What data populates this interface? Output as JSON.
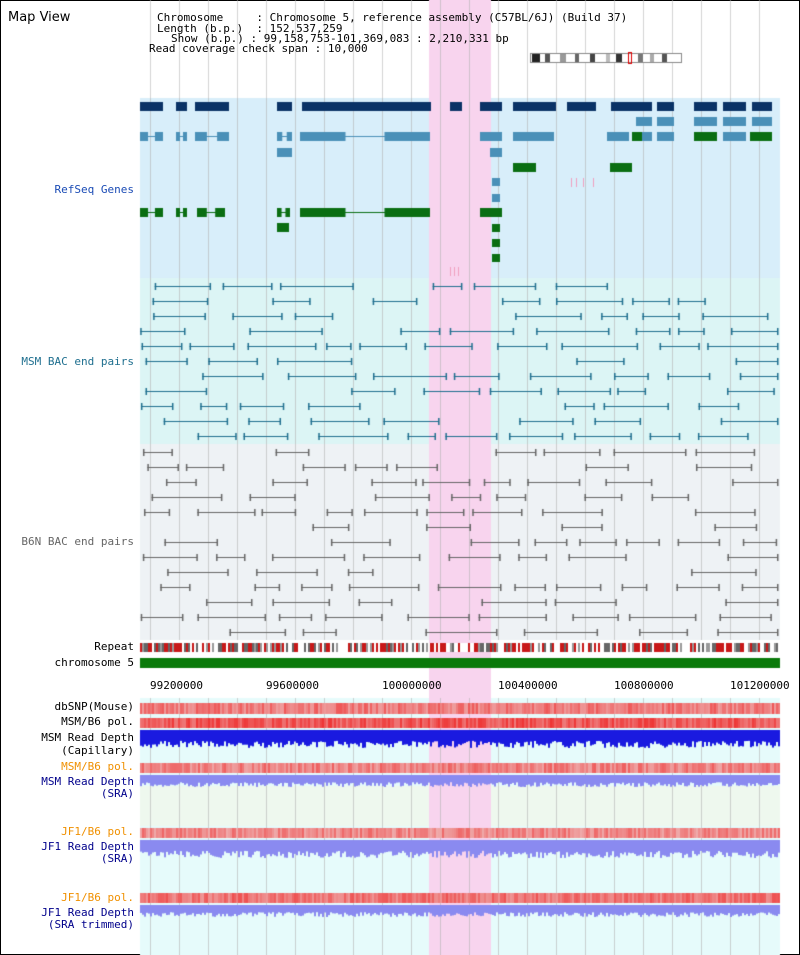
{
  "title": "Map View",
  "info": {
    "chromosome_label": "Chromosome",
    "chromosome_value": "Chromosome 5, reference assembly (C57BL/6J) (Build 37)",
    "length_label": "Length (b.p.)",
    "length_value": "152,537,259",
    "show_label": "Show (b.p.)",
    "show_value": "99,158,753-101,369,083 : 2,210,331 bp",
    "coverage_label": "Read coverage check span",
    "coverage_value": "10,000"
  },
  "tracks": {
    "refseq": "RefSeq Genes",
    "msm_bac": "MSM BAC end pairs",
    "b6n_bac": "B6N BAC end pairs",
    "repeat": "Repeat",
    "chromosome": "chromosome 5",
    "dbsnp": "dbSNP(Mouse)",
    "msm_pol": "MSM/B6 pol.",
    "msm_depth_cap_1": "MSM Read Depth",
    "msm_depth_cap_2": "(Capillary)",
    "msm_pol2": "MSM/B6 pol.",
    "msm_depth_sra_1": "MSM Read Depth",
    "msm_depth_sra_2": "(SRA)",
    "jf1_pol": "JF1/B6 pol.",
    "jf1_depth_1": "JF1 Read Depth",
    "jf1_depth_2": "(SRA)",
    "jf1_pol2": "JF1/B6 pol.",
    "jf1_trim_1": "JF1 Read Depth",
    "jf1_trim_2": "(SRA trimmed)"
  },
  "axis": {
    "ticks": [
      "99200000",
      "99600000",
      "100000000",
      "100400000",
      "100800000",
      "101200000"
    ]
  },
  "colors": {
    "highlight": "#f8d4ee",
    "refseq_bg": "#d8eefa",
    "msm_bg": "#dcf5f5",
    "b6n_bg": "#eef2f5",
    "gene_dark": "#0a3266",
    "gene_mid": "#4a90b8",
    "gene_green": "#0a6e12",
    "chrom": "#0a7a0a",
    "depth_blue": "#1a1ae0",
    "depth_lilac": "#8a8af0"
  }
}
